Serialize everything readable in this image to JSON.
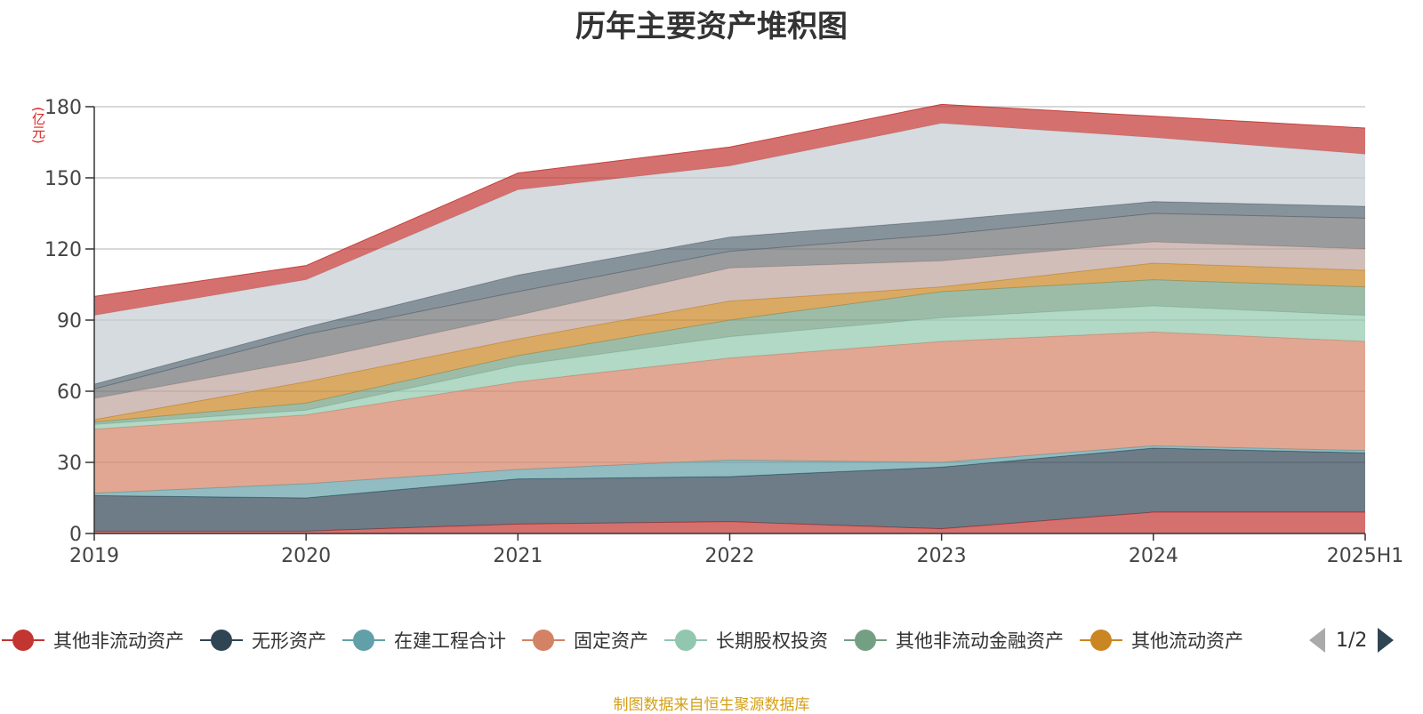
{
  "title": "历年主要资产堆积图",
  "unit_label": "(亿元)",
  "source_text": "制图数据来自恒生聚源数据库",
  "pager_text": "1/2",
  "legend": [
    {
      "name": "其他非流动资产",
      "color": "#c23531"
    },
    {
      "name": "无形资产",
      "color": "#2f4554"
    },
    {
      "name": "在建工程合计",
      "color": "#61a0a8"
    },
    {
      "name": "固定资产",
      "color": "#d48265"
    },
    {
      "name": "长期股权投资",
      "color": "#91c7ae"
    },
    {
      "name": "其他非流动金融资产",
      "color": "#749f83"
    },
    {
      "name": "其他流动资产",
      "color": "#ca8622"
    }
  ],
  "chart_data": {
    "type": "area",
    "stacked": true,
    "categories": [
      "2019",
      "2020",
      "2021",
      "2022",
      "2023",
      "2024",
      "2025H1"
    ],
    "ylim": [
      0,
      180
    ],
    "yticks": [
      0,
      30,
      60,
      90,
      120,
      150,
      180
    ],
    "grid": true,
    "legend_position": "bottom",
    "series": [
      {
        "name": "其他非流动资产",
        "color": "#c23531",
        "values": [
          1,
          1,
          4,
          5,
          2,
          9,
          9
        ]
      },
      {
        "name": "无形资产",
        "color": "#2f4554",
        "values": [
          15,
          14,
          19,
          19,
          26,
          27,
          25
        ]
      },
      {
        "name": "在建工程合计",
        "color": "#61a0a8",
        "values": [
          1,
          6,
          4,
          7,
          2,
          1,
          1
        ]
      },
      {
        "name": "固定资产",
        "color": "#d48265",
        "values": [
          27,
          29,
          37,
          43,
          51,
          48,
          46
        ]
      },
      {
        "name": "长期股权投资",
        "color": "#91c7ae",
        "values": [
          2,
          2,
          7,
          9,
          10,
          11,
          11
        ]
      },
      {
        "name": "其他非流动金融资产",
        "color": "#749f83",
        "values": [
          1,
          3,
          4,
          7,
          11,
          11,
          12
        ]
      },
      {
        "name": "其他流动资产",
        "color": "#ca8622",
        "values": [
          1,
          9,
          7,
          8,
          2,
          7,
          7
        ]
      },
      {
        "color": "#bda29a",
        "values": [
          9,
          9,
          10,
          14,
          11,
          9,
          9
        ]
      },
      {
        "color": "#6e7074",
        "values": [
          4,
          11,
          10,
          7,
          11,
          12,
          13
        ]
      },
      {
        "color": "#546570",
        "values": [
          2,
          3,
          7,
          6,
          6,
          5,
          5
        ]
      },
      {
        "color": "#c4ccd3",
        "values": [
          29,
          20,
          36,
          30,
          41,
          27,
          22
        ]
      },
      {
        "color": "#c23531",
        "values": [
          8,
          6,
          7,
          8,
          8,
          9,
          11
        ]
      }
    ]
  }
}
